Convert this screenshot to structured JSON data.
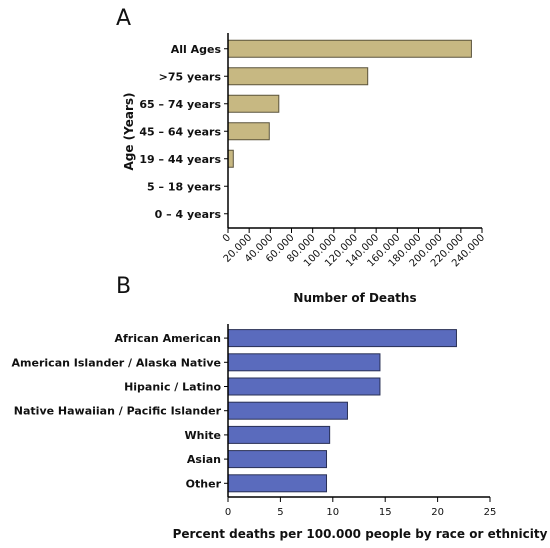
{
  "chart_data": [
    {
      "type": "bar",
      "orientation": "horizontal",
      "panel_label": "A",
      "categories": [
        "All Ages",
        ">75 years",
        "65 – 74 years",
        "45 – 64 years",
        "19 – 44 years",
        "5 – 18 years",
        "0 – 4 years"
      ],
      "values": [
        230000,
        132000,
        48000,
        39000,
        5000,
        0,
        0
      ],
      "xlabel": "Number of Deaths",
      "ylabel": "Age (Years)",
      "xlim": [
        0,
        240000
      ],
      "xticks": [
        "0",
        "20.000",
        "40.000",
        "60.000",
        "80.000",
        "100.000",
        "120.000",
        "140.000",
        "160.000",
        "180.000",
        "200.000",
        "220.000",
        "240.000"
      ],
      "bar_color": "#c7b882",
      "grid": false
    },
    {
      "type": "bar",
      "orientation": "horizontal",
      "panel_label": "B",
      "categories": [
        "African American",
        "American Islander / Alaska Native",
        "Hipanic / Latino",
        "Native Hawaiian / Pacific Islander",
        "White",
        "Asian",
        "Other"
      ],
      "values": [
        21.8,
        14.5,
        14.5,
        11.4,
        9.7,
        9.4,
        9.4
      ],
      "xlabel": "Percent deaths per 100.000 people by race or ethnicity",
      "ylabel": "",
      "xlim": [
        0,
        25
      ],
      "xticks": [
        "0",
        "5",
        "10",
        "15",
        "20",
        "25"
      ],
      "bar_color": "#5a6bbd",
      "grid": false
    }
  ]
}
